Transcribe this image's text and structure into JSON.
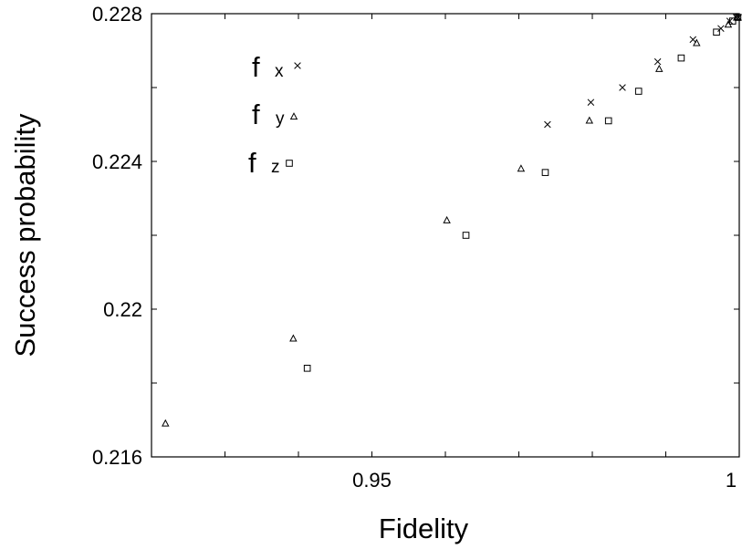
{
  "chart_data": {
    "type": "scatter",
    "xlabel": "Fidelity",
    "ylabel": "Success probability",
    "xlim": [
      0.92,
      1.0
    ],
    "ylim": [
      0.216,
      0.228
    ],
    "x_ticks": [
      0.93,
      0.94,
      0.95,
      0.96,
      0.97,
      0.98,
      0.99,
      1.0
    ],
    "x_tick_labels": [
      {
        "value": 0.95,
        "label": "0.95"
      },
      {
        "value": 1.0,
        "label": "1"
      }
    ],
    "y_ticks": [
      0.216,
      0.218,
      0.22,
      0.222,
      0.224,
      0.226,
      0.228
    ],
    "y_tick_labels": [
      {
        "value": 0.216,
        "label": "0.216"
      },
      {
        "value": 0.22,
        "label": "0.22"
      },
      {
        "value": 0.224,
        "label": "0.224"
      },
      {
        "value": 0.228,
        "label": "0.228"
      }
    ],
    "grid": false,
    "legend_position": "top-left",
    "series": [
      {
        "name": "fx",
        "label_main": "f",
        "label_sub": "x",
        "marker": "x",
        "points": [
          [
            0.9739,
            0.225
          ],
          [
            0.9798,
            0.2256
          ],
          [
            0.9841,
            0.226
          ],
          [
            0.9889,
            0.2267
          ],
          [
            0.9937,
            0.2273
          ],
          [
            0.9975,
            0.2276
          ],
          [
            0.9987,
            0.2278
          ],
          [
            0.9996,
            0.2279
          ],
          [
            0.9999,
            0.2279
          ]
        ]
      },
      {
        "name": "fy",
        "label_main": "f",
        "label_sub": "y",
        "marker": "triangle",
        "points": [
          [
            0.9219,
            0.2169
          ],
          [
            0.9393,
            0.2192
          ],
          [
            0.9602,
            0.2224
          ],
          [
            0.9703,
            0.2238
          ],
          [
            0.9796,
            0.2251
          ],
          [
            0.9891,
            0.2265
          ],
          [
            0.9942,
            0.2272
          ],
          [
            0.9985,
            0.2277
          ],
          [
            0.9997,
            0.2279
          ]
        ]
      },
      {
        "name": "fz",
        "label_main": "f",
        "label_sub": "z",
        "marker": "square",
        "points": [
          [
            0.9412,
            0.2184
          ],
          [
            0.9628,
            0.222
          ],
          [
            0.9736,
            0.2237
          ],
          [
            0.9822,
            0.2251
          ],
          [
            0.9863,
            0.2259
          ],
          [
            0.9921,
            0.2268
          ],
          [
            0.9969,
            0.2275
          ],
          [
            0.9991,
            0.2278
          ],
          [
            0.9998,
            0.2279
          ]
        ]
      }
    ]
  }
}
